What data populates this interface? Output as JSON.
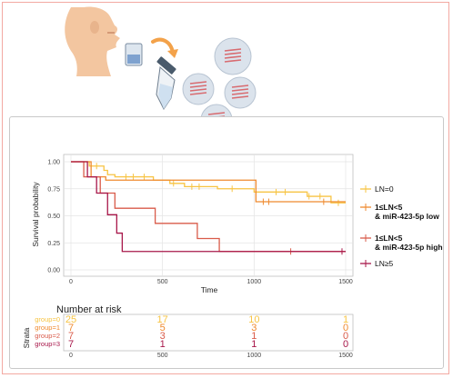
{
  "colors": {
    "g0": "#f7c443",
    "g1": "#ef8a2f",
    "g2": "#d95b4a",
    "g3": "#a8174a",
    "skin": "#f3c6a0",
    "frame": "#f3a9a2"
  },
  "illustration": {
    "icons": [
      "face-profile-icon",
      "tube-icon",
      "arrow-icon",
      "cells-icon"
    ]
  },
  "chart_data": {
    "type": "line",
    "subtype": "kaplan-meier",
    "ylabel": "Survival probability",
    "xlabel": "Time",
    "xlim": [
      -60,
      1550
    ],
    "ylim": [
      -0.03,
      1.06
    ],
    "x_ticks": [
      0,
      500,
      1000,
      1500
    ],
    "y_ticks": [
      "0.00",
      "0.25",
      "0.50",
      "0.75",
      "1.00"
    ],
    "grid": true,
    "legend_position": "right",
    "series": [
      {
        "name": "LN=0",
        "color_key": "g0",
        "steps": [
          [
            0,
            1.0
          ],
          [
            100,
            0.96
          ],
          [
            180,
            0.92
          ],
          [
            200,
            0.88
          ],
          [
            240,
            0.86
          ],
          [
            450,
            0.83
          ],
          [
            540,
            0.8
          ],
          [
            620,
            0.77
          ],
          [
            800,
            0.75
          ],
          [
            1000,
            0.72
          ],
          [
            1290,
            0.68
          ],
          [
            1420,
            0.62
          ],
          [
            1500,
            0.62
          ]
        ],
        "censors": [
          [
            140,
            0.96
          ],
          [
            300,
            0.86
          ],
          [
            340,
            0.86
          ],
          [
            400,
            0.86
          ],
          [
            560,
            0.8
          ],
          [
            660,
            0.77
          ],
          [
            700,
            0.77
          ],
          [
            880,
            0.75
          ],
          [
            1120,
            0.72
          ],
          [
            1170,
            0.72
          ],
          [
            1300,
            0.68
          ],
          [
            1360,
            0.68
          ],
          [
            1460,
            0.62
          ]
        ]
      },
      {
        "name": "1≤LN<5",
        "subname": "& miR-423-5p low",
        "color_key": "g1",
        "steps": [
          [
            0,
            1.0
          ],
          [
            110,
            0.86
          ],
          [
            140,
            0.86
          ],
          [
            190,
            0.83
          ],
          [
            1000,
            0.83
          ],
          [
            1010,
            0.63
          ],
          [
            1500,
            0.63
          ]
        ],
        "censors": [
          [
            1050,
            0.63
          ],
          [
            1080,
            0.63
          ],
          [
            1380,
            0.63
          ]
        ]
      },
      {
        "name": "1≤LN<5",
        "subname": "& miR-423-5p high",
        "color_key": "g2",
        "steps": [
          [
            0,
            1.0
          ],
          [
            70,
            0.86
          ],
          [
            160,
            0.71
          ],
          [
            240,
            0.57
          ],
          [
            450,
            0.57
          ],
          [
            460,
            0.43
          ],
          [
            680,
            0.43
          ],
          [
            690,
            0.29
          ],
          [
            800,
            0.29
          ],
          [
            810,
            0.17
          ],
          [
            1500,
            0.17
          ]
        ],
        "censors": [
          [
            1200,
            0.17
          ]
        ]
      },
      {
        "name": "LN≥5",
        "color_key": "g3",
        "steps": [
          [
            0,
            1.0
          ],
          [
            90,
            0.86
          ],
          [
            140,
            0.71
          ],
          [
            200,
            0.51
          ],
          [
            250,
            0.34
          ],
          [
            280,
            0.17
          ],
          [
            1500,
            0.17
          ]
        ],
        "censors": [
          [
            1480,
            0.17
          ]
        ]
      }
    ],
    "risk_table": {
      "title": "Number at risk",
      "ylabel": "Strata",
      "x_ticks": [
        0,
        500,
        1000,
        1500
      ],
      "rows": [
        {
          "label": "group=0",
          "color_key": "g0",
          "values": [
            "25",
            "17",
            "10",
            "1"
          ]
        },
        {
          "label": "group=1",
          "color_key": "g1",
          "values": [
            "7",
            "5",
            "3",
            "0"
          ]
        },
        {
          "label": "group=2",
          "color_key": "g2",
          "values": [
            "7",
            "3",
            "1",
            "0"
          ]
        },
        {
          "label": "group=3",
          "color_key": "g3",
          "values": [
            "7",
            "1",
            "1",
            "0"
          ]
        }
      ]
    }
  }
}
